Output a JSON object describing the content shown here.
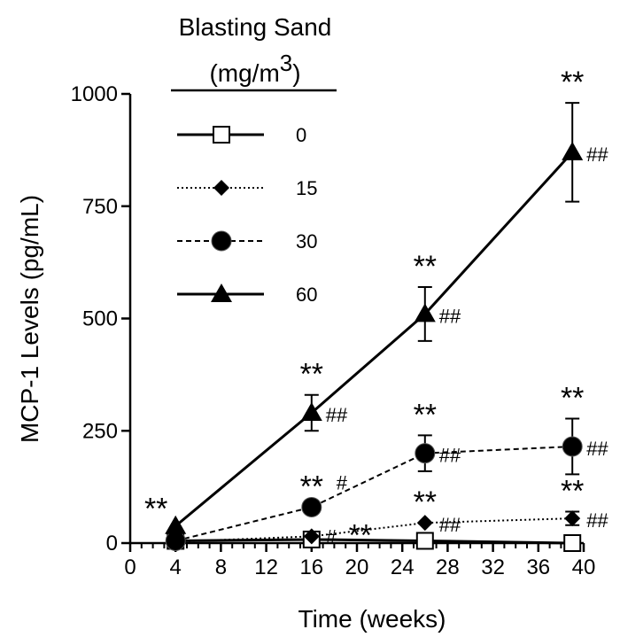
{
  "chart_data": {
    "type": "line",
    "xlabel": "Time (weeks)",
    "ylabel": "MCP-1 Levels (pg/mL)",
    "xlim": [
      0,
      40
    ],
    "ylim": [
      0,
      1000
    ],
    "xticks": [
      "0",
      "4",
      "8",
      "12",
      "16",
      "20",
      "24",
      "28",
      "32",
      "36",
      "40"
    ],
    "yticks": [
      "0",
      "250",
      "500",
      "750",
      "1000"
    ],
    "x": [
      4,
      16,
      26,
      39
    ],
    "legend": {
      "title_line1": "Blasting Sand",
      "title_line2": "(mg/m",
      "title_sup": "3",
      "title_close": ")",
      "placement": "top-left"
    },
    "series": [
      {
        "name": "0",
        "marker": "square-open",
        "line_style": "solid",
        "values": [
          5,
          8,
          5,
          0
        ],
        "errors": [
          0,
          0,
          0,
          0
        ],
        "stars": [
          "",
          "",
          "",
          ""
        ],
        "hashes": [
          "",
          "",
          "",
          ""
        ]
      },
      {
        "name": "15",
        "marker": "diamond-filled",
        "line_style": "dotted",
        "values": [
          3,
          15,
          45,
          55
        ],
        "errors": [
          0,
          0,
          0,
          15
        ],
        "stars": [
          "",
          "**",
          "**",
          "**"
        ],
        "hashes": [
          "",
          "#",
          "##",
          "##"
        ]
      },
      {
        "name": "30",
        "marker": "circle-filled",
        "line_style": "dashed",
        "values": [
          5,
          80,
          200,
          215
        ],
        "errors": [
          0,
          0,
          40,
          62
        ],
        "stars": [
          "",
          "**",
          "**",
          "**"
        ],
        "hashes": [
          "",
          "#",
          "##",
          "##"
        ]
      },
      {
        "name": "60",
        "marker": "triangle-filled",
        "line_style": "solid",
        "values": [
          38,
          290,
          510,
          870
        ],
        "errors": [
          0,
          40,
          60,
          110
        ],
        "stars": [
          "**",
          "**",
          "**",
          "**"
        ],
        "hashes": [
          "",
          "##",
          "##",
          "##"
        ]
      }
    ]
  }
}
